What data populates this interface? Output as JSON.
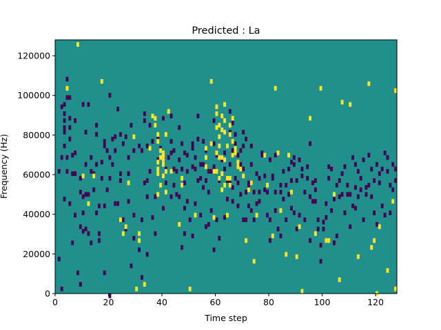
{
  "chart_data": {
    "type": "heatmap",
    "title": "Predicted : La",
    "xlabel": "Time step",
    "ylabel": "Frequency (Hz)",
    "xlim": [
      0,
      128
    ],
    "ylim": [
      0,
      128000
    ],
    "x_ticks": [
      0,
      20,
      40,
      60,
      80,
      100,
      120
    ],
    "y_ticks": [
      0,
      20000,
      40000,
      60000,
      80000,
      100000,
      120000
    ],
    "grid": false,
    "value_levels": [
      -1,
      0,
      1
    ],
    "colors": {
      "low": "#440154",
      "mid": "#21908d",
      "high": "#fde725"
    },
    "high_cells": [
      [
        4,
        40
      ],
      [
        8,
        2
      ],
      [
        10,
        116
      ],
      [
        12,
        140
      ],
      [
        14,
        116
      ],
      [
        17,
        34
      ],
      [
        24,
        154
      ],
      [
        25,
        166
      ],
      [
        26,
        160
      ],
      [
        27,
        122
      ],
      [
        29,
        82
      ],
      [
        30,
        214
      ],
      [
        31,
        166
      ],
      [
        31,
        172
      ],
      [
        33,
        210
      ],
      [
        35,
        92
      ],
      [
        36,
        64
      ],
      [
        37,
        66
      ],
      [
        37,
        72
      ],
      [
        38,
        80
      ],
      [
        38,
        86
      ],
      [
        38,
        104
      ],
      [
        38,
        110
      ],
      [
        38,
        114
      ],
      [
        38,
        132
      ],
      [
        39,
        94
      ],
      [
        39,
        100
      ],
      [
        39,
        124
      ],
      [
        40,
        96
      ],
      [
        40,
        98
      ],
      [
        40,
        102
      ],
      [
        40,
        106
      ],
      [
        40,
        116
      ],
      [
        41,
        80
      ],
      [
        41,
        112
      ],
      [
        41,
        130
      ],
      [
        42,
        60
      ],
      [
        43,
        112
      ],
      [
        46,
        158
      ],
      [
        47,
        118
      ],
      [
        47,
        124
      ],
      [
        50,
        214
      ],
      [
        52,
        150
      ],
      [
        56,
        92
      ],
      [
        56,
        100
      ],
      [
        56,
        108
      ],
      [
        58,
        34
      ],
      [
        58,
        88
      ],
      [
        59,
        112
      ],
      [
        59,
        152
      ],
      [
        60,
        56
      ],
      [
        60,
        62
      ],
      [
        60,
        74
      ],
      [
        60,
        96
      ],
      [
        60,
        112
      ],
      [
        61,
        72
      ],
      [
        61,
        82
      ],
      [
        61,
        90
      ],
      [
        61,
        100
      ],
      [
        61,
        118
      ],
      [
        62,
        64
      ],
      [
        62,
        76
      ],
      [
        62,
        100
      ],
      [
        62,
        114
      ],
      [
        62,
        128
      ],
      [
        63,
        54
      ],
      [
        63,
        68
      ],
      [
        63,
        78
      ],
      [
        63,
        102
      ],
      [
        63,
        124
      ],
      [
        64,
        90
      ],
      [
        64,
        118
      ],
      [
        64,
        150
      ],
      [
        65,
        72
      ],
      [
        65,
        80
      ],
      [
        65,
        118
      ],
      [
        65,
        124
      ],
      [
        66,
        66
      ],
      [
        66,
        86
      ],
      [
        66,
        98
      ],
      [
        67,
        92
      ],
      [
        67,
        96
      ],
      [
        68,
        104
      ],
      [
        68,
        108
      ],
      [
        69,
        110
      ],
      [
        70,
        116
      ],
      [
        71,
        172
      ],
      [
        72,
        128
      ],
      [
        73,
        122
      ],
      [
        74,
        190
      ],
      [
        75,
        150
      ],
      [
        78,
        98
      ],
      [
        79,
        124
      ],
      [
        81,
        168
      ],
      [
        82,
        40
      ],
      [
        83,
        96
      ],
      [
        84,
        146
      ],
      [
        86,
        184
      ],
      [
        87,
        98
      ],
      [
        88,
        130
      ],
      [
        90,
        186
      ],
      [
        91,
        160
      ],
      [
        92,
        216
      ],
      [
        95,
        66
      ],
      [
        97,
        166
      ],
      [
        99,
        40
      ],
      [
        101,
        172
      ],
      [
        102,
        172
      ],
      [
        104,
        132
      ],
      [
        106,
        206
      ],
      [
        107,
        52
      ],
      [
        110,
        54
      ],
      [
        113,
        186
      ],
      [
        117,
        36
      ],
      [
        118,
        178
      ],
      [
        119,
        172
      ],
      [
        120,
        218
      ],
      [
        121,
        160
      ],
      [
        124,
        198
      ],
      [
        126,
        138
      ],
      [
        127,
        42
      ],
      [
        127,
        214
      ]
    ],
    "low_cells": [
      [
        1,
        112
      ],
      [
        1,
        188
      ],
      [
        2,
        56
      ],
      [
        2,
        100
      ],
      [
        2,
        214
      ],
      [
        3,
        54
      ],
      [
        3,
        62
      ],
      [
        3,
        68
      ],
      [
        3,
        74
      ],
      [
        3,
        78
      ],
      [
        3,
        90
      ],
      [
        3,
        136
      ],
      [
        4,
        32
      ],
      [
        4,
        48
      ],
      [
        4,
        100
      ],
      [
        4,
        112
      ],
      [
        5,
        48
      ],
      [
        5,
        66
      ],
      [
        5,
        74
      ],
      [
        5,
        84
      ],
      [
        5,
        140
      ],
      [
        6,
        98
      ],
      [
        6,
        114
      ],
      [
        6,
        174
      ],
      [
        7,
        68
      ],
      [
        7,
        96
      ],
      [
        7,
        114
      ],
      [
        7,
        150
      ],
      [
        8,
        200
      ],
      [
        9,
        118
      ],
      [
        9,
        130
      ],
      [
        9,
        160
      ],
      [
        9,
        210
      ],
      [
        10,
        54
      ],
      [
        10,
        134
      ],
      [
        10,
        148
      ],
      [
        10,
        164
      ],
      [
        11,
        78
      ],
      [
        11,
        106
      ],
      [
        11,
        132
      ],
      [
        11,
        162
      ],
      [
        12,
        54
      ],
      [
        12,
        132
      ],
      [
        12,
        166
      ],
      [
        13,
        100
      ],
      [
        13,
        112
      ],
      [
        13,
        174
      ],
      [
        14,
        114
      ],
      [
        14,
        128
      ],
      [
        15,
        72
      ],
      [
        15,
        80
      ],
      [
        15,
        106
      ],
      [
        15,
        148
      ],
      [
        16,
        142
      ],
      [
        16,
        166
      ],
      [
        16,
        172
      ],
      [
        17,
        104
      ],
      [
        17,
        118
      ],
      [
        18,
        86
      ],
      [
        18,
        90
      ],
      [
        18,
        142
      ],
      [
        18,
        200
      ],
      [
        19,
        94
      ],
      [
        19,
        128
      ],
      [
        20,
        46
      ],
      [
        20,
        100
      ],
      [
        20,
        118
      ],
      [
        20,
        220
      ],
      [
        21,
        84
      ],
      [
        21,
        106
      ],
      [
        22,
        82
      ],
      [
        22,
        94
      ],
      [
        22,
        140
      ],
      [
        23,
        58
      ],
      [
        23,
        140
      ],
      [
        24,
        80
      ],
      [
        24,
        114
      ],
      [
        24,
        120
      ],
      [
        25,
        88
      ],
      [
        25,
        154
      ],
      [
        26,
        82
      ],
      [
        26,
        162
      ],
      [
        27,
        100
      ],
      [
        27,
        114
      ],
      [
        27,
        138
      ],
      [
        28,
        72
      ],
      [
        28,
        194
      ],
      [
        29,
        94
      ],
      [
        29,
        150
      ],
      [
        29,
        170
      ],
      [
        31,
        90
      ],
      [
        31,
        180
      ],
      [
        32,
        94
      ],
      [
        32,
        154
      ],
      [
        32,
        204
      ],
      [
        33,
        62
      ],
      [
        33,
        68
      ],
      [
        33,
        122
      ],
      [
        34,
        90
      ],
      [
        34,
        120
      ],
      [
        34,
        134
      ],
      [
        34,
        184
      ],
      [
        35,
        72
      ],
      [
        35,
        112
      ],
      [
        36,
        86
      ],
      [
        36,
        152
      ],
      [
        37,
        72
      ],
      [
        37,
        134
      ],
      [
        37,
        166
      ],
      [
        38,
        84
      ],
      [
        38,
        102
      ],
      [
        39,
        92
      ],
      [
        40,
        66
      ],
      [
        40,
        102
      ],
      [
        40,
        144
      ],
      [
        41,
        110
      ],
      [
        41,
        122
      ],
      [
        42,
        100
      ],
      [
        43,
        64
      ],
      [
        43,
        86
      ],
      [
        43,
        96
      ],
      [
        43,
        134
      ],
      [
        44,
        94
      ],
      [
        44,
        110
      ],
      [
        44,
        124
      ],
      [
        45,
        112
      ],
      [
        45,
        132
      ],
      [
        46,
        74
      ],
      [
        46,
        102
      ],
      [
        46,
        134
      ],
      [
        47,
        88
      ],
      [
        47,
        110
      ],
      [
        47,
        178
      ],
      [
        48,
        96
      ],
      [
        48,
        122
      ],
      [
        48,
        144
      ],
      [
        48,
        166
      ],
      [
        49,
        98
      ],
      [
        49,
        112
      ],
      [
        49,
        138
      ],
      [
        50,
        154
      ],
      [
        51,
        88
      ],
      [
        51,
        92
      ],
      [
        51,
        108
      ],
      [
        51,
        168
      ],
      [
        52,
        100
      ],
      [
        52,
        110
      ],
      [
        52,
        140
      ],
      [
        53,
        64
      ],
      [
        53,
        84
      ],
      [
        53,
        120
      ],
      [
        54,
        106
      ],
      [
        54,
        118
      ],
      [
        54,
        150
      ],
      [
        55,
        86
      ],
      [
        55,
        106
      ],
      [
        55,
        126
      ],
      [
        56,
        94
      ],
      [
        56,
        120
      ],
      [
        56,
        160
      ],
      [
        57,
        112
      ],
      [
        57,
        130
      ],
      [
        57,
        158
      ],
      [
        58,
        112
      ],
      [
        58,
        146
      ],
      [
        59,
        68
      ],
      [
        59,
        88
      ],
      [
        59,
        108
      ],
      [
        59,
        180
      ],
      [
        60,
        98
      ],
      [
        60,
        154
      ],
      [
        61,
        120
      ],
      [
        61,
        170
      ],
      [
        62,
        102
      ],
      [
        63,
        96
      ],
      [
        63,
        110
      ],
      [
        63,
        152
      ],
      [
        64,
        120
      ],
      [
        64,
        136
      ],
      [
        65,
        60
      ],
      [
        65,
        78
      ],
      [
        65,
        106
      ],
      [
        65,
        122
      ],
      [
        66,
        70
      ],
      [
        66,
        94
      ],
      [
        66,
        126
      ],
      [
        66,
        138
      ],
      [
        67,
        80
      ],
      [
        67,
        88
      ],
      [
        67,
        118
      ],
      [
        68,
        98
      ],
      [
        68,
        122
      ],
      [
        68,
        142
      ],
      [
        69,
        94
      ],
      [
        69,
        106
      ],
      [
        69,
        132
      ],
      [
        70,
        78
      ],
      [
        70,
        90
      ],
      [
        70,
        110
      ],
      [
        70,
        154
      ],
      [
        71,
        84
      ],
      [
        71,
        130
      ],
      [
        71,
        154
      ],
      [
        72,
        122
      ],
      [
        72,
        126
      ],
      [
        72,
        142
      ],
      [
        73,
        90
      ],
      [
        73,
        106
      ],
      [
        73,
        122
      ],
      [
        73,
        146
      ],
      [
        74,
        130
      ],
      [
        74,
        154
      ],
      [
        75,
        114
      ],
      [
        75,
        140
      ],
      [
        76,
        118
      ],
      [
        76,
        130
      ],
      [
        76,
        138
      ],
      [
        77,
        96
      ],
      [
        77,
        98
      ],
      [
        78,
        116
      ],
      [
        78,
        128
      ],
      [
        79,
        130
      ],
      [
        79,
        150
      ],
      [
        80,
        102
      ],
      [
        80,
        154
      ],
      [
        80,
        172
      ],
      [
        81,
        116
      ],
      [
        81,
        118
      ],
      [
        82,
        98
      ],
      [
        82,
        130
      ],
      [
        82,
        146
      ],
      [
        83,
        162
      ],
      [
        84,
        124
      ],
      [
        84,
        130
      ],
      [
        84,
        168
      ],
      [
        85,
        112
      ],
      [
        85,
        136
      ],
      [
        86,
        124
      ],
      [
        86,
        154
      ],
      [
        87,
        110
      ],
      [
        87,
        132
      ],
      [
        88,
        104
      ],
      [
        88,
        120
      ],
      [
        88,
        144
      ],
      [
        89,
        100
      ],
      [
        89,
        106
      ],
      [
        89,
        148
      ],
      [
        90,
        120
      ],
      [
        90,
        162
      ],
      [
        91,
        102
      ],
      [
        91,
        150
      ],
      [
        92,
        110
      ],
      [
        92,
        116
      ],
      [
        93,
        130
      ],
      [
        93,
        154
      ],
      [
        94,
        108
      ],
      [
        94,
        118
      ],
      [
        95,
        88
      ],
      [
        95,
        134
      ],
      [
        95,
        172
      ],
      [
        96,
        122
      ],
      [
        96,
        138
      ],
      [
        97,
        120
      ],
      [
        97,
        128
      ],
      [
        97,
        138
      ],
      [
        98,
        154
      ],
      [
        98,
        162
      ],
      [
        99,
        176
      ],
      [
        99,
        190
      ],
      [
        100,
        156
      ],
      [
        100,
        162
      ],
      [
        101,
        140
      ],
      [
        101,
        152
      ],
      [
        102,
        108
      ],
      [
        102,
        118
      ],
      [
        103,
        110
      ],
      [
        103,
        146
      ],
      [
        104,
        136
      ],
      [
        104,
        174
      ],
      [
        105,
        124
      ],
      [
        105,
        168
      ],
      [
        106,
        120
      ],
      [
        106,
        134
      ],
      [
        107,
        114
      ],
      [
        107,
        132
      ],
      [
        108,
        108
      ],
      [
        108,
        148
      ],
      [
        109,
        124
      ],
      [
        109,
        132
      ],
      [
        110,
        132
      ],
      [
        110,
        160
      ],
      [
        111,
        100
      ],
      [
        111,
        142
      ],
      [
        112,
        106
      ],
      [
        112,
        126
      ],
      [
        112,
        144
      ],
      [
        113,
        112
      ],
      [
        113,
        134
      ],
      [
        114,
        118
      ],
      [
        114,
        128
      ],
      [
        115,
        102
      ],
      [
        115,
        154
      ],
      [
        116,
        126
      ],
      [
        116,
        132
      ],
      [
        117,
        98
      ],
      [
        117,
        124
      ],
      [
        118,
        110
      ],
      [
        118,
        134
      ],
      [
        119,
        120
      ],
      [
        119,
        148
      ],
      [
        120,
        106
      ],
      [
        120,
        158
      ],
      [
        121,
        114
      ],
      [
        121,
        122
      ],
      [
        122,
        110
      ],
      [
        122,
        142
      ],
      [
        123,
        96
      ],
      [
        123,
        150
      ],
      [
        124,
        100
      ],
      [
        124,
        112
      ],
      [
        125,
        124
      ],
      [
        125,
        148
      ],
      [
        126,
        106
      ],
      [
        126,
        128
      ],
      [
        127,
        110
      ],
      [
        127,
        120
      ]
    ]
  }
}
